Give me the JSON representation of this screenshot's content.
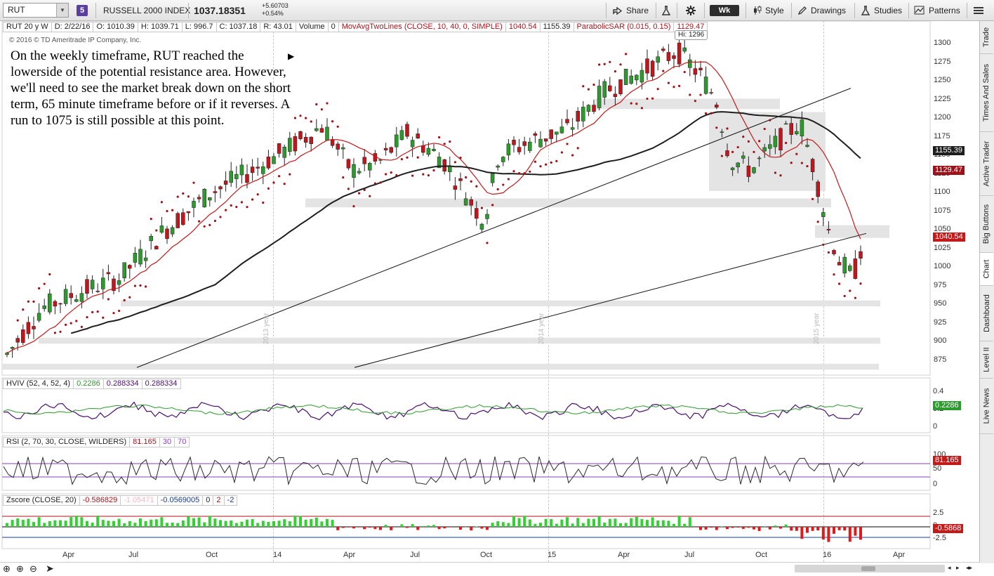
{
  "toolbar": {
    "symbol": "RUT",
    "link_badge": "5",
    "instrument_name": "RUSSELL 2000 INDEX",
    "last_price": "1037.18351",
    "net_change": "+5.60703",
    "pct_change": "+0.54%",
    "share": "Share",
    "timeframe": "Wk",
    "style": "Style",
    "drawings": "Drawings",
    "studies": "Studies",
    "patterns": "Patterns"
  },
  "infobar": {
    "sym": "RUT 20 y W",
    "date": "D: 2/22/16",
    "open": "O: 1010.39",
    "high": "H: 1039.71",
    "low": "L: 996.7",
    "close": "C: 1037.18",
    "range": "R: 43.01",
    "vol_label": "Volume",
    "vol": "0",
    "mov_label": "MovAvgTwoLines (CLOSE, 10, 40, 0, SIMPLE)",
    "mov_v1": "1040.54",
    "mov_v2": "1155.39",
    "sar_label": "ParabolicSAR (0.015, 0.15)",
    "sar_v": "1129.47"
  },
  "copyright": "© 2016 © TD Ameritrade IP Company, Inc.",
  "annotation": "On the weekly timeframe, RUT reached the lowerside of the potential resistance area.  However, we'll need to see the market break down on the short term, 65 minute timeframe before or if it reverses. A run to 1075 is still possible at this point.",
  "hi_bubble": "Hi: 1296",
  "year_labels": [
    "2013 year",
    "2014 year",
    "2015 year"
  ],
  "price_axis": [
    "1300",
    "1275",
    "1250",
    "1225",
    "1200",
    "1175",
    "1150",
    "1125",
    "1100",
    "1075",
    "1050",
    "1025",
    "1000",
    "975",
    "950",
    "925",
    "900",
    "875"
  ],
  "price_tags": {
    "sma40": "1155.39",
    "sar": "1129.47",
    "sma10": "1040.54"
  },
  "hviv": {
    "label": "HVIV (52, 4, 52, 4)",
    "v1": "0.2286",
    "v2": "0.288334",
    "v3": "0.288334",
    "axis": [
      "0.4",
      "0.2",
      "0"
    ],
    "tag": "0.2286"
  },
  "rsi": {
    "label": "RSI (2, 70, 30, CLOSE, WILDERS)",
    "value": "81.165",
    "lower": "30",
    "upper": "70",
    "axis": [
      "100",
      "50",
      "0"
    ],
    "tag": "81.165"
  },
  "zscore": {
    "label": "Zscore (CLOSE, 20)",
    "v1": "-0.586829",
    "v2": "-1.05471",
    "v3": "-0.0569005",
    "v4": "0",
    "v5": "2",
    "v6": "-2",
    "axis": [
      "2.5",
      "0",
      "-2.5"
    ],
    "tag": "-0.5868"
  },
  "time_axis": [
    "Apr",
    "Jul",
    "Oct",
    "14",
    "Apr",
    "Jul",
    "Oct",
    "15",
    "Apr",
    "Jul",
    "Oct",
    "16",
    "Apr"
  ],
  "sidebar_tabs": [
    "Trade",
    "Times And Sales",
    "Active Trader",
    "Big Buttons",
    "Chart",
    "Dashboard",
    "Level II",
    "Live News"
  ],
  "colors": {
    "up": "#2d9a2d",
    "down": "#c4141c",
    "sar": "#a01018",
    "sma10": "#c41a1a",
    "sma40": "#1e1e1e",
    "hviv_a": "#4a0f6e",
    "hviv_b": "#2c9a2c",
    "zone": "#e4e4e4"
  }
}
